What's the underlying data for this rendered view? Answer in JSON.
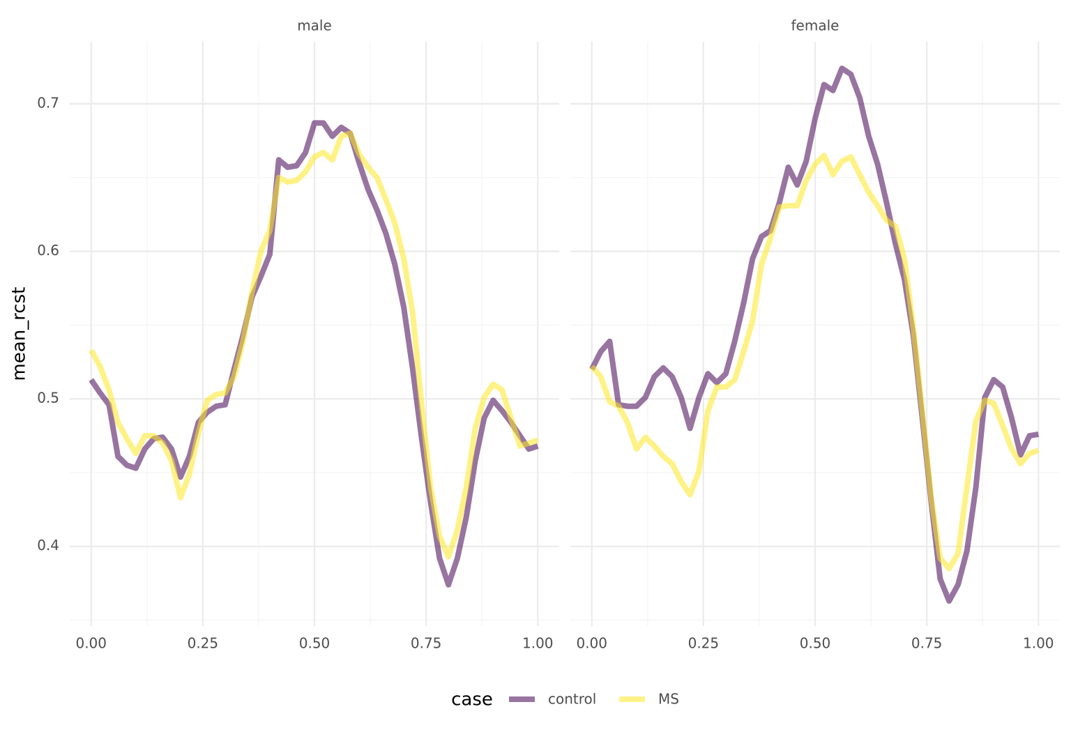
{
  "chart_data": [
    {
      "type": "line",
      "title": "male",
      "ylabel": "mean_rcst",
      "legend_title": "case",
      "grid": true,
      "line_opacity": 0.55,
      "x": [
        0,
        0.02,
        0.04,
        0.06,
        0.08,
        0.1,
        0.12,
        0.14,
        0.16,
        0.18,
        0.2,
        0.22,
        0.24,
        0.26,
        0.28,
        0.3,
        0.32,
        0.34,
        0.36,
        0.38,
        0.4,
        0.42,
        0.44,
        0.46,
        0.48,
        0.5,
        0.52,
        0.54,
        0.56,
        0.58,
        0.6,
        0.62,
        0.64,
        0.66,
        0.68,
        0.7,
        0.72,
        0.74,
        0.76,
        0.78,
        0.8,
        0.82,
        0.84,
        0.86,
        0.88,
        0.9,
        0.92,
        0.94,
        0.96,
        0.98,
        1
      ],
      "series": [
        {
          "name": "control",
          "color": "#440154",
          "values": [
            0.513,
            0.504,
            0.496,
            0.461,
            0.455,
            0.453,
            0.466,
            0.473,
            0.474,
            0.466,
            0.447,
            0.461,
            0.484,
            0.491,
            0.495,
            0.496,
            0.52,
            0.543,
            0.569,
            0.583,
            0.598,
            0.662,
            0.657,
            0.658,
            0.667,
            0.687,
            0.687,
            0.678,
            0.684,
            0.68,
            0.66,
            0.642,
            0.628,
            0.612,
            0.591,
            0.562,
            0.52,
            0.473,
            0.43,
            0.392,
            0.374,
            0.392,
            0.42,
            0.458,
            0.487,
            0.499,
            0.492,
            0.484,
            0.475,
            0.466,
            0.468
          ]
        },
        {
          "name": "MS",
          "color": "#FDE725",
          "values": [
            0.533,
            0.522,
            0.506,
            0.484,
            0.473,
            0.463,
            0.475,
            0.475,
            0.47,
            0.458,
            0.433,
            0.449,
            0.477,
            0.499,
            0.503,
            0.504,
            0.515,
            0.539,
            0.572,
            0.6,
            0.614,
            0.65,
            0.647,
            0.648,
            0.654,
            0.664,
            0.667,
            0.662,
            0.678,
            0.68,
            0.666,
            0.657,
            0.65,
            0.635,
            0.619,
            0.595,
            0.558,
            0.496,
            0.44,
            0.407,
            0.393,
            0.411,
            0.44,
            0.48,
            0.501,
            0.51,
            0.506,
            0.487,
            0.468,
            0.47,
            0.472
          ]
        }
      ],
      "xlim": [
        -0.048,
        1.048
      ],
      "ylim": [
        0.346,
        0.742
      ],
      "xticks": [
        {
          "value": 0,
          "label": "0.00"
        },
        {
          "value": 0.25,
          "label": "0.25"
        },
        {
          "value": 0.5,
          "label": "0.50"
        },
        {
          "value": 0.75,
          "label": "0.75"
        },
        {
          "value": 1,
          "label": "1.00"
        }
      ],
      "x_minor_ticks": [
        0.125,
        0.375,
        0.625,
        0.875
      ],
      "yticks": [
        0.4,
        0.5,
        0.6,
        0.7
      ],
      "y_minor_ticks": [
        0.35,
        0.45,
        0.55,
        0.65
      ]
    },
    {
      "type": "line",
      "title": "female",
      "grid": true,
      "line_opacity": 0.55,
      "x": [
        0,
        0.02,
        0.04,
        0.06,
        0.08,
        0.1,
        0.12,
        0.14,
        0.16,
        0.18,
        0.2,
        0.22,
        0.24,
        0.26,
        0.28,
        0.3,
        0.32,
        0.34,
        0.36,
        0.38,
        0.4,
        0.42,
        0.44,
        0.46,
        0.48,
        0.5,
        0.52,
        0.54,
        0.56,
        0.58,
        0.6,
        0.62,
        0.64,
        0.66,
        0.68,
        0.7,
        0.72,
        0.74,
        0.76,
        0.78,
        0.8,
        0.82,
        0.84,
        0.86,
        0.88,
        0.9,
        0.92,
        0.94,
        0.96,
        0.98,
        1
      ],
      "series": [
        {
          "name": "control",
          "color": "#440154",
          "values": [
            0.52,
            0.532,
            0.539,
            0.496,
            0.495,
            0.495,
            0.501,
            0.515,
            0.521,
            0.515,
            0.501,
            0.48,
            0.501,
            0.517,
            0.511,
            0.517,
            0.539,
            0.565,
            0.595,
            0.61,
            0.614,
            0.633,
            0.657,
            0.645,
            0.661,
            0.69,
            0.713,
            0.709,
            0.724,
            0.72,
            0.704,
            0.678,
            0.659,
            0.633,
            0.605,
            0.581,
            0.543,
            0.487,
            0.43,
            0.378,
            0.363,
            0.374,
            0.397,
            0.44,
            0.501,
            0.513,
            0.508,
            0.487,
            0.462,
            0.475,
            0.476
          ]
        },
        {
          "name": "MS",
          "color": "#FDE725",
          "values": [
            0.522,
            0.515,
            0.498,
            0.495,
            0.484,
            0.466,
            0.474,
            0.468,
            0.461,
            0.456,
            0.444,
            0.435,
            0.451,
            0.492,
            0.508,
            0.508,
            0.513,
            0.532,
            0.553,
            0.591,
            0.609,
            0.63,
            0.631,
            0.631,
            0.648,
            0.659,
            0.665,
            0.652,
            0.661,
            0.664,
            0.652,
            0.64,
            0.631,
            0.621,
            0.617,
            0.595,
            0.548,
            0.492,
            0.433,
            0.392,
            0.385,
            0.395,
            0.44,
            0.485,
            0.499,
            0.497,
            0.482,
            0.466,
            0.456,
            0.463,
            0.465
          ]
        }
      ],
      "xlim": [
        -0.048,
        1.048
      ],
      "ylim": [
        0.346,
        0.742
      ],
      "xticks": [
        {
          "value": 0,
          "label": "0.00"
        },
        {
          "value": 0.25,
          "label": "0.25"
        },
        {
          "value": 0.5,
          "label": "0.50"
        },
        {
          "value": 0.75,
          "label": "0.75"
        },
        {
          "value": 1,
          "label": "1.00"
        }
      ],
      "x_minor_ticks": [
        0.125,
        0.375,
        0.625,
        0.875
      ],
      "yticks": [
        0.4,
        0.5,
        0.6,
        0.7
      ],
      "y_minor_ticks": [
        0.35,
        0.45,
        0.55,
        0.65
      ]
    }
  ]
}
